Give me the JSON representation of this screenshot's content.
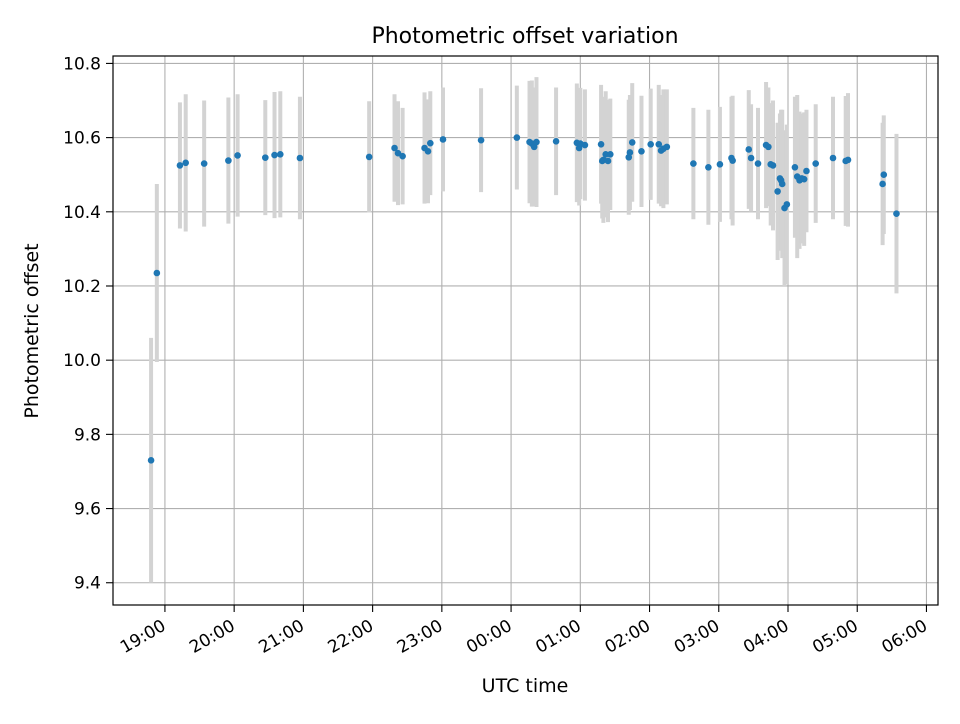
{
  "chart_data": {
    "type": "scatter",
    "title": "Photometric offset variation",
    "xlabel": "UTC time",
    "ylabel": "Photometric offset",
    "x_is_time": true,
    "xlim": [
      "18:15",
      "06:10"
    ],
    "ylim": [
      9.34,
      10.82
    ],
    "xticks": [
      "19:00",
      "20:00",
      "21:00",
      "22:00",
      "23:00",
      "00:00",
      "01:00",
      "02:00",
      "03:00",
      "04:00",
      "05:00",
      "06:00"
    ],
    "yticks": [
      9.4,
      9.6,
      9.8,
      10.0,
      10.2,
      10.4,
      10.6,
      10.8
    ],
    "grid": true,
    "colors": {
      "points": "#1f77b4",
      "errorbars": "#d3d3d3",
      "grid": "#b0b0b0"
    },
    "series": [
      {
        "x": [
          "18:48",
          "18:53",
          "19:13",
          "19:18",
          "19:34",
          "19:55",
          "20:03",
          "20:27",
          "20:35",
          "20:40",
          "20:57",
          "21:57",
          "22:19",
          "22:22",
          "22:26",
          "22:45",
          "22:48",
          "22:50",
          "23:01",
          "23:34",
          "00:05",
          "00:16",
          "00:18",
          "00:20",
          "00:22",
          "00:39",
          "00:57",
          "00:59",
          "01:00",
          "01:04",
          "01:18",
          "01:19",
          "01:20",
          "01:22",
          "01:24",
          "01:26",
          "01:42",
          "01:43",
          "01:45",
          "01:53",
          "02:01",
          "02:08",
          "02:10",
          "02:12",
          "02:15",
          "02:38",
          "02:51",
          "03:01",
          "03:11",
          "03:12",
          "03:26",
          "03:28",
          "03:34",
          "03:41",
          "03:43",
          "03:45",
          "03:47",
          "03:51",
          "03:53",
          "03:54",
          "03:55",
          "03:57",
          "03:59",
          "04:06",
          "04:08",
          "04:10",
          "04:12",
          "04:14",
          "04:16",
          "04:24",
          "04:39",
          "04:50",
          "04:52",
          "05:22",
          "05:23",
          "05:34"
        ],
        "y": [
          9.73,
          10.235,
          10.525,
          10.532,
          10.53,
          10.538,
          10.552,
          10.546,
          10.553,
          10.555,
          10.545,
          10.548,
          10.572,
          10.558,
          10.55,
          10.572,
          10.563,
          10.585,
          10.595,
          10.593,
          10.6,
          10.588,
          10.584,
          10.575,
          10.588,
          10.59,
          10.586,
          10.572,
          10.584,
          10.58,
          10.582,
          10.537,
          10.54,
          10.555,
          10.537,
          10.555,
          10.547,
          10.56,
          10.587,
          10.563,
          10.582,
          10.582,
          10.565,
          10.57,
          10.575,
          10.53,
          10.52,
          10.528,
          10.545,
          10.538,
          10.568,
          10.545,
          10.53,
          10.58,
          10.575,
          10.528,
          10.525,
          10.455,
          10.49,
          10.485,
          10.475,
          10.41,
          10.42,
          10.52,
          10.495,
          10.485,
          10.49,
          10.488,
          10.51,
          10.53,
          10.545,
          10.537,
          10.54,
          10.475,
          10.5,
          10.395
        ],
        "yerr": [
          0.33,
          0.24,
          0.17,
          0.185,
          0.17,
          0.17,
          0.165,
          0.155,
          0.17,
          0.17,
          0.165,
          0.15,
          0.145,
          0.14,
          0.13,
          0.15,
          0.14,
          0.14,
          0.14,
          0.14,
          0.14,
          0.165,
          0.17,
          0.16,
          0.175,
          0.145,
          0.16,
          0.155,
          0.15,
          0.15,
          0.16,
          0.155,
          0.17,
          0.17,
          0.165,
          0.15,
          0.155,
          0.155,
          0.16,
          0.15,
          0.15,
          0.16,
          0.15,
          0.16,
          0.155,
          0.15,
          0.155,
          0.155,
          0.165,
          0.175,
          0.16,
          0.145,
          0.15,
          0.17,
          0.16,
          0.165,
          0.175,
          0.185,
          0.175,
          0.19,
          0.2,
          0.21,
          0.215,
          0.19,
          0.22,
          0.185,
          0.175,
          0.18,
          0.165,
          0.16,
          0.165,
          0.175,
          0.18,
          0.165,
          0.16,
          0.215
        ]
      }
    ]
  }
}
